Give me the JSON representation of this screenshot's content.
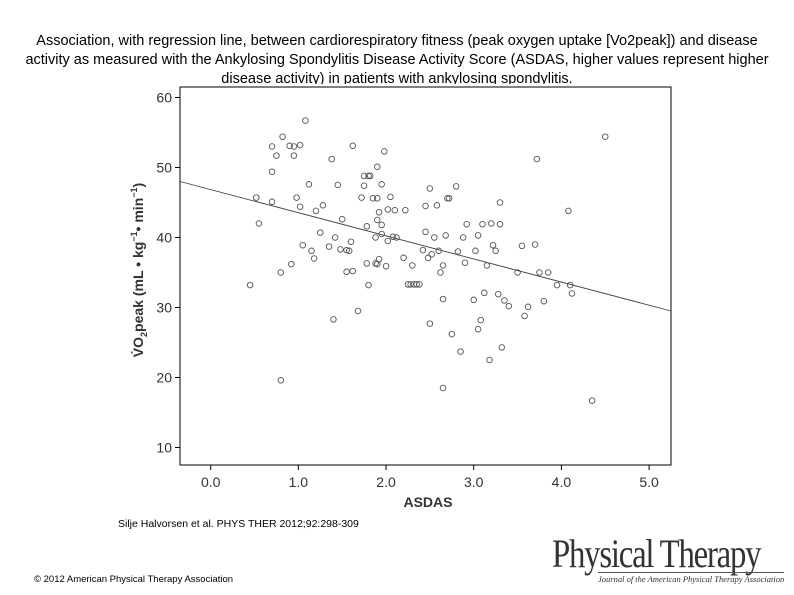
{
  "slide": {
    "title": "Association, with regression line, between cardiorespiratory fitness (peak oxygen uptake [Vo2peak]) and disease activity as measured with the Ankylosing Spondylitis Disease Activity Score (ASDAS, higher values represent higher disease activity) in patients with ankylosing spondylitis.",
    "citation": "Silje Halvorsen et al. PHYS THER 2012;92:298-309",
    "copyright": "© 2012 American Physical Therapy Association",
    "logo_main": "Physical Therapy",
    "logo_sub": "Journal of the American Physical Therapy Association"
  },
  "chart_data": {
    "type": "scatter",
    "xlabel": "ASDAS",
    "ylabel_parts": [
      "V̇O",
      "2",
      "peak (mL • kg",
      "−1",
      "• min",
      "−1",
      ")"
    ],
    "xlim": [
      -0.35,
      5.25
    ],
    "ylim": [
      7.5,
      61.5
    ],
    "xticks": [
      0,
      1,
      2,
      3,
      4,
      5
    ],
    "xtick_labels": [
      "0.0",
      "1.0",
      "2.0",
      "3.0",
      "4.0",
      "5.0"
    ],
    "yticks": [
      10,
      20,
      30,
      40,
      50,
      60
    ],
    "ytick_labels": [
      "10",
      "20",
      "30",
      "40",
      "50",
      "60"
    ],
    "regression": {
      "x1": -0.35,
      "y1": 48.0,
      "x2": 5.25,
      "y2": 29.5
    },
    "points": [
      [
        0.45,
        33.2
      ],
      [
        0.52,
        45.7
      ],
      [
        0.55,
        42.0
      ],
      [
        0.7,
        45.1
      ],
      [
        0.7,
        49.4
      ],
      [
        0.7,
        53.0
      ],
      [
        0.75,
        51.7
      ],
      [
        0.8,
        35.0
      ],
      [
        0.8,
        19.6
      ],
      [
        0.82,
        54.4
      ],
      [
        0.9,
        53.1
      ],
      [
        0.92,
        36.2
      ],
      [
        0.95,
        53.0
      ],
      [
        0.95,
        51.7
      ],
      [
        0.98,
        45.7
      ],
      [
        1.02,
        44.4
      ],
      [
        1.02,
        53.2
      ],
      [
        1.05,
        38.9
      ],
      [
        1.08,
        56.7
      ],
      [
        1.12,
        47.6
      ],
      [
        1.15,
        38.1
      ],
      [
        1.18,
        37.0
      ],
      [
        1.2,
        43.8
      ],
      [
        1.25,
        40.7
      ],
      [
        1.28,
        44.6
      ],
      [
        1.35,
        38.7
      ],
      [
        1.38,
        51.2
      ],
      [
        1.4,
        28.3
      ],
      [
        1.42,
        40.0
      ],
      [
        1.45,
        47.5
      ],
      [
        1.48,
        38.3
      ],
      [
        1.5,
        42.6
      ],
      [
        1.55,
        35.1
      ],
      [
        1.55,
        38.2
      ],
      [
        1.58,
        38.1
      ],
      [
        1.6,
        39.4
      ],
      [
        1.62,
        53.1
      ],
      [
        1.62,
        35.2
      ],
      [
        1.68,
        29.5
      ],
      [
        1.72,
        45.7
      ],
      [
        1.75,
        48.8
      ],
      [
        1.75,
        47.4
      ],
      [
        1.78,
        41.6
      ],
      [
        1.78,
        36.3
      ],
      [
        1.8,
        33.2
      ],
      [
        1.8,
        48.8
      ],
      [
        1.82,
        48.8
      ],
      [
        1.85,
        45.6
      ],
      [
        1.88,
        36.3
      ],
      [
        1.88,
        40.0
      ],
      [
        1.9,
        36.2
      ],
      [
        1.9,
        50.1
      ],
      [
        1.9,
        45.6
      ],
      [
        1.9,
        42.5
      ],
      [
        1.92,
        36.9
      ],
      [
        1.92,
        43.6
      ],
      [
        1.95,
        47.6
      ],
      [
        1.95,
        40.5
      ],
      [
        1.95,
        41.8
      ],
      [
        1.98,
        52.3
      ],
      [
        2.0,
        35.9
      ],
      [
        2.02,
        44.0
      ],
      [
        2.02,
        39.5
      ],
      [
        2.05,
        45.8
      ],
      [
        2.08,
        40.1
      ],
      [
        2.1,
        43.9
      ],
      [
        2.12,
        40.0
      ],
      [
        2.2,
        37.1
      ],
      [
        2.22,
        43.9
      ],
      [
        2.25,
        33.3
      ],
      [
        2.28,
        33.3
      ],
      [
        2.3,
        36.0
      ],
      [
        2.32,
        33.3
      ],
      [
        2.35,
        33.3
      ],
      [
        2.38,
        33.3
      ],
      [
        2.42,
        38.2
      ],
      [
        2.45,
        40.8
      ],
      [
        2.45,
        44.5
      ],
      [
        2.48,
        37.1
      ],
      [
        2.5,
        47.0
      ],
      [
        2.5,
        27.7
      ],
      [
        2.52,
        37.6
      ],
      [
        2.55,
        40.0
      ],
      [
        2.58,
        44.6
      ],
      [
        2.6,
        38.1
      ],
      [
        2.62,
        35.0
      ],
      [
        2.65,
        31.2
      ],
      [
        2.65,
        18.5
      ],
      [
        2.65,
        36.0
      ],
      [
        2.68,
        40.3
      ],
      [
        2.7,
        45.6
      ],
      [
        2.72,
        45.6
      ],
      [
        2.75,
        26.2
      ],
      [
        2.8,
        47.3
      ],
      [
        2.82,
        38.0
      ],
      [
        2.85,
        23.7
      ],
      [
        2.88,
        40.0
      ],
      [
        2.9,
        36.4
      ],
      [
        2.92,
        41.9
      ],
      [
        3.0,
        31.1
      ],
      [
        3.02,
        38.1
      ],
      [
        3.05,
        40.3
      ],
      [
        3.05,
        26.9
      ],
      [
        3.08,
        28.2
      ],
      [
        3.1,
        41.9
      ],
      [
        3.12,
        32.1
      ],
      [
        3.15,
        36.0
      ],
      [
        3.18,
        22.5
      ],
      [
        3.2,
        42.0
      ],
      [
        3.22,
        38.9
      ],
      [
        3.25,
        38.1
      ],
      [
        3.28,
        31.9
      ],
      [
        3.3,
        41.9
      ],
      [
        3.3,
        45.0
      ],
      [
        3.32,
        24.3
      ],
      [
        3.35,
        31.0
      ],
      [
        3.4,
        30.2
      ],
      [
        3.5,
        35.0
      ],
      [
        3.55,
        38.8
      ],
      [
        3.58,
        28.8
      ],
      [
        3.62,
        30.1
      ],
      [
        3.7,
        39.0
      ],
      [
        3.72,
        51.2
      ],
      [
        3.75,
        35.0
      ],
      [
        3.8,
        30.9
      ],
      [
        3.85,
        35.0
      ],
      [
        3.95,
        33.2
      ],
      [
        4.08,
        43.8
      ],
      [
        4.1,
        33.2
      ],
      [
        4.12,
        32.0
      ],
      [
        4.35,
        16.7
      ],
      [
        4.5,
        54.4
      ]
    ]
  }
}
